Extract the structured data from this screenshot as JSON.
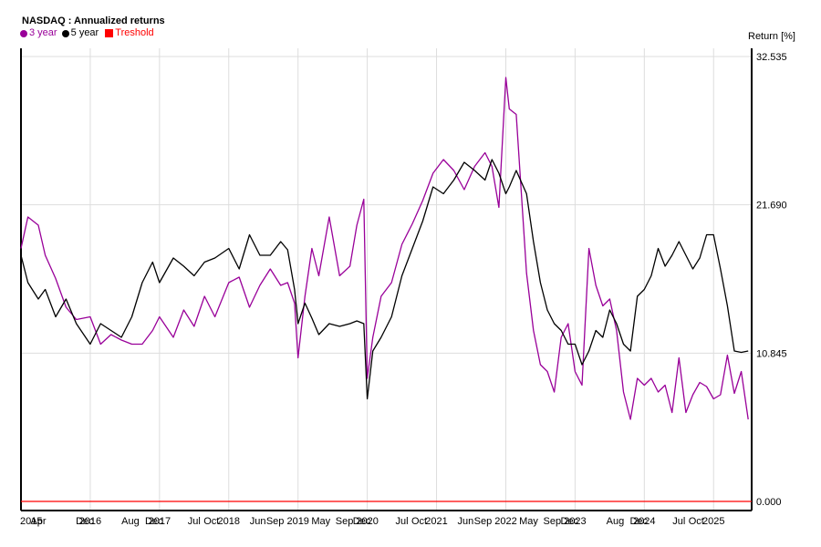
{
  "chart_data": {
    "type": "line",
    "title": "NASDAQ : Annualized returns",
    "ylabel": "Return [%]",
    "xlabel": "",
    "ylim": [
      0,
      32.535
    ],
    "ytick_labels": [
      "32.535",
      "21.690",
      "10.845",
      "0.000"
    ],
    "yticks": [
      32.535,
      21.69,
      10.845,
      0.0
    ],
    "xlim": [
      2015.0,
      2025.55
    ],
    "xtick_labels": [
      "2015",
      "Apr",
      "Dec",
      "2016",
      "Aug",
      "Dec",
      "2017",
      "Jul",
      "Oct",
      "2018",
      "Jun",
      "Sep",
      "2019",
      "May",
      "Sep",
      "Dec",
      "2020",
      "Jul",
      "Oct",
      "2021",
      "Jun",
      "Sep",
      "2022",
      "May",
      "Sep",
      "Dec",
      "2023",
      "Aug",
      "Dec",
      "2024",
      "Jul",
      "Oct",
      "2025"
    ],
    "xtick_positions": [
      2015.0,
      2015.25,
      2015.92,
      2016.0,
      2016.58,
      2016.92,
      2017.0,
      2017.5,
      2017.75,
      2018.0,
      2018.42,
      2018.67,
      2019.0,
      2019.33,
      2019.67,
      2019.92,
      2020.0,
      2020.5,
      2020.75,
      2021.0,
      2021.42,
      2021.67,
      2022.0,
      2022.33,
      2022.67,
      2022.92,
      2023.0,
      2023.58,
      2023.92,
      2024.0,
      2024.5,
      2024.75,
      2025.0
    ],
    "grid": true,
    "legend_placement": "top-left",
    "series": [
      {
        "name": "3 year",
        "color": "#990099",
        "x": [
          2015.0,
          2015.1,
          2015.25,
          2015.35,
          2015.5,
          2015.65,
          2015.8,
          2016.0,
          2016.15,
          2016.3,
          2016.45,
          2016.6,
          2016.75,
          2016.9,
          2017.0,
          2017.2,
          2017.35,
          2017.5,
          2017.65,
          2017.8,
          2018.0,
          2018.15,
          2018.3,
          2018.45,
          2018.6,
          2018.75,
          2018.85,
          2018.95,
          2019.0,
          2019.1,
          2019.2,
          2019.3,
          2019.45,
          2019.6,
          2019.75,
          2019.85,
          2019.95,
          2020.0,
          2020.08,
          2020.2,
          2020.35,
          2020.5,
          2020.65,
          2020.8,
          2020.95,
          2021.1,
          2021.25,
          2021.4,
          2021.55,
          2021.7,
          2021.8,
          2021.9,
          2022.0,
          2022.05,
          2022.15,
          2022.3,
          2022.4,
          2022.5,
          2022.6,
          2022.7,
          2022.8,
          2022.9,
          2023.0,
          2023.1,
          2023.2,
          2023.3,
          2023.4,
          2023.5,
          2023.6,
          2023.7,
          2023.8,
          2023.9,
          2024.0,
          2024.1,
          2024.2,
          2024.3,
          2024.4,
          2024.5,
          2024.6,
          2024.7,
          2024.8,
          2024.9,
          2025.0,
          2025.1,
          2025.2,
          2025.3,
          2025.4,
          2025.5
        ],
        "y": [
          18.5,
          20.8,
          20.2,
          18.0,
          16.3,
          14.2,
          13.3,
          13.5,
          11.5,
          12.2,
          11.8,
          11.5,
          11.5,
          12.5,
          13.5,
          12.0,
          14.0,
          12.8,
          15.0,
          13.5,
          16.0,
          16.4,
          14.2,
          15.8,
          17.0,
          15.8,
          16.0,
          14.5,
          10.5,
          15.0,
          18.5,
          16.5,
          20.8,
          16.5,
          17.2,
          20.2,
          22.1,
          9.0,
          12.0,
          15.0,
          16.0,
          18.8,
          20.3,
          22.0,
          24.0,
          25.0,
          24.2,
          22.8,
          24.5,
          25.5,
          24.5,
          21.5,
          31.0,
          28.7,
          28.3,
          16.7,
          12.5,
          10.0,
          9.5,
          8.0,
          12.0,
          13.0,
          9.5,
          8.5,
          18.5,
          15.8,
          14.3,
          14.8,
          12.5,
          8.0,
          6.0,
          9.0,
          8.5,
          9.0,
          8.0,
          8.5,
          6.5,
          10.5,
          6.5,
          7.8,
          8.7,
          8.4,
          7.5,
          7.8,
          10.7,
          7.9,
          9.5,
          6.0
        ]
      },
      {
        "name": "5 year",
        "color": "#000000",
        "x": [
          2015.0,
          2015.1,
          2015.25,
          2015.35,
          2015.5,
          2015.65,
          2015.8,
          2016.0,
          2016.15,
          2016.3,
          2016.45,
          2016.6,
          2016.75,
          2016.9,
          2017.0,
          2017.2,
          2017.35,
          2017.5,
          2017.65,
          2017.8,
          2018.0,
          2018.15,
          2018.3,
          2018.45,
          2018.6,
          2018.75,
          2018.85,
          2018.95,
          2019.0,
          2019.1,
          2019.2,
          2019.3,
          2019.45,
          2019.6,
          2019.75,
          2019.85,
          2019.95,
          2020.0,
          2020.08,
          2020.2,
          2020.35,
          2020.5,
          2020.65,
          2020.8,
          2020.95,
          2021.1,
          2021.25,
          2021.4,
          2021.55,
          2021.7,
          2021.8,
          2021.9,
          2022.0,
          2022.05,
          2022.15,
          2022.3,
          2022.4,
          2022.5,
          2022.6,
          2022.7,
          2022.8,
          2022.9,
          2023.0,
          2023.1,
          2023.2,
          2023.3,
          2023.4,
          2023.5,
          2023.6,
          2023.7,
          2023.8,
          2023.9,
          2024.0,
          2024.1,
          2024.2,
          2024.3,
          2024.4,
          2024.5,
          2024.6,
          2024.7,
          2024.8,
          2024.9,
          2025.0,
          2025.1,
          2025.2,
          2025.3,
          2025.4,
          2025.5
        ],
        "y": [
          18.0,
          16.0,
          14.8,
          15.5,
          13.5,
          14.8,
          13.0,
          11.5,
          13.0,
          12.5,
          12.0,
          13.5,
          16.0,
          17.5,
          16.0,
          17.8,
          17.2,
          16.5,
          17.5,
          17.8,
          18.5,
          17.0,
          19.5,
          18.0,
          18.0,
          19.0,
          18.4,
          15.5,
          13.0,
          14.5,
          13.4,
          12.2,
          13.0,
          12.8,
          13.0,
          13.2,
          13.0,
          7.5,
          11.0,
          12.0,
          13.5,
          16.5,
          18.5,
          20.5,
          23.0,
          22.5,
          23.5,
          24.8,
          24.2,
          23.5,
          25.0,
          24.0,
          22.5,
          23.0,
          24.2,
          22.5,
          19.0,
          16.0,
          14.0,
          13.0,
          12.5,
          11.5,
          11.5,
          10.0,
          11.0,
          12.5,
          12.0,
          14.0,
          13.0,
          11.5,
          11.0,
          15.0,
          15.5,
          16.5,
          18.5,
          17.2,
          18.0,
          19.0,
          18.0,
          17.0,
          17.8,
          19.5,
          19.5,
          17.0,
          14.3,
          11.0,
          10.9,
          11.0
        ]
      },
      {
        "name": "Treshold",
        "color": "#ff0000",
        "x": [
          2015.0,
          2025.55
        ],
        "y": [
          0.0,
          0.0
        ]
      }
    ]
  }
}
